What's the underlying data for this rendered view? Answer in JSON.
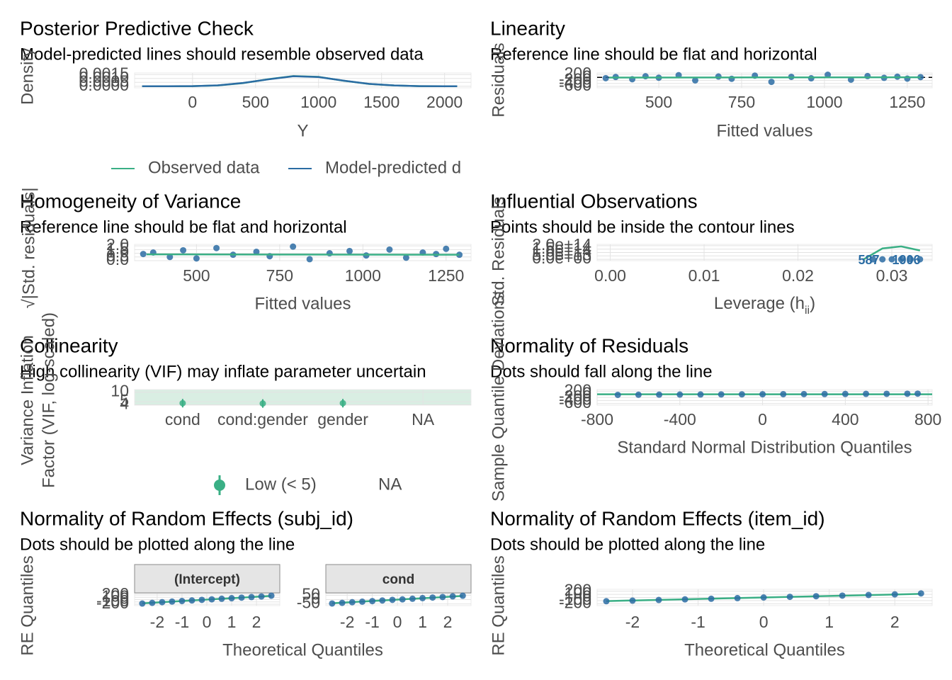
{
  "chart_data": [
    {
      "type": "density",
      "title": "Posterior Predictive Check",
      "subtitle": "Model-predicted lines should resemble observed data",
      "x_label": "Y",
      "y_label": "Density",
      "xlim": [
        -460,
        2210
      ],
      "ylim": [
        -0.0002,
        0.0017
      ],
      "xticks": [
        0,
        500,
        1000,
        1500,
        2000
      ],
      "yticks": [
        {
          "value": 0,
          "label": "0.0000"
        },
        {
          "value": 0.0005,
          "label": "0.0005"
        },
        {
          "value": 0.001,
          "label": "0.0010"
        },
        {
          "value": 0.0015,
          "label": "0.0015"
        }
      ],
      "grid": true,
      "legend": "bottom",
      "series": [
        {
          "name": "Observed data",
          "color": "#3aaf85",
          "mark": "line",
          "x": [
            -400,
            -200,
            0,
            200,
            400,
            600,
            800,
            1000,
            1200,
            1400,
            1600,
            1800,
            2000,
            2100
          ],
          "values": [
            0,
            0,
            1e-05,
            0.0001,
            0.0004,
            0.0009,
            0.0013,
            0.0012,
            0.0007,
            0.0003,
            0.0001,
            2e-05,
            0,
            0
          ]
        },
        {
          "name": "Model-predicted d",
          "color": "#2b6ca3",
          "mark": "line",
          "x": [
            -400,
            -200,
            0,
            200,
            400,
            600,
            800,
            1000,
            1200,
            1400,
            1600,
            1800,
            2000,
            2100
          ],
          "values": [
            0,
            0,
            2e-05,
            0.00012,
            0.00042,
            0.00088,
            0.00128,
            0.00118,
            0.00072,
            0.00031,
            0.0001,
            2e-05,
            0,
            0
          ]
        }
      ]
    },
    {
      "type": "scatter",
      "title": "Linearity",
      "subtitle": "Reference line should be flat and horizontal",
      "x_label": "Fitted values",
      "y_label": "Residuals",
      "xlim": [
        314,
        1325
      ],
      "ylim": [
        -700,
        300
      ],
      "xticks": [
        500,
        750,
        1000,
        1250
      ],
      "yticks": [
        -600,
        -400,
        -200,
        0,
        200
      ],
      "grid": true,
      "ref_line": 0,
      "series": [
        {
          "color": "#2b6ca3",
          "mark": "point",
          "x": [
            340,
            370,
            420,
            460,
            500,
            560,
            610,
            680,
            720,
            790,
            840,
            900,
            960,
            1010,
            1080,
            1130,
            1180,
            1220,
            1250,
            1290
          ],
          "values": [
            -50,
            30,
            -120,
            80,
            -20,
            150,
            -200,
            60,
            -90,
            120,
            -300,
            40,
            -60,
            180,
            -150,
            90,
            -30,
            50,
            -80,
            20
          ]
        },
        {
          "color": "#3aaf85",
          "mark": "line",
          "x": [
            350,
            800,
            1290
          ],
          "values": [
            -10,
            0,
            10
          ]
        }
      ]
    },
    {
      "type": "scatter",
      "title": "Homogeneity of Variance",
      "subtitle": "Reference line should be flat and horizontal",
      "x_label": "Fitted values",
      "y_label": "√|Std. residuals|",
      "xlim": [
        314,
        1325
      ],
      "ylim": [
        0,
        2.2
      ],
      "xticks": [
        500,
        750,
        1000,
        1250
      ],
      "yticks": [
        {
          "value": 0,
          "label": "0.0"
        },
        {
          "value": 0.5,
          "label": "0.5"
        },
        {
          "value": 1,
          "label": "1.0"
        },
        {
          "value": 1.5,
          "label": "1.5"
        },
        {
          "value": 2,
          "label": "2.0"
        }
      ],
      "grid": true,
      "series": [
        {
          "color": "#2b6ca3",
          "mark": "point",
          "x": [
            340,
            370,
            420,
            460,
            500,
            560,
            610,
            680,
            720,
            790,
            840,
            900,
            960,
            1010,
            1080,
            1130,
            1180,
            1220,
            1250,
            1290
          ],
          "values": [
            0.9,
            1.1,
            0.5,
            1.4,
            0.3,
            1.7,
            0.8,
            1.2,
            0.6,
            1.9,
            0.2,
            1.0,
            1.3,
            0.7,
            1.5,
            0.4,
            1.1,
            0.9,
            1.6,
            0.8
          ]
        },
        {
          "color": "#3aaf85",
          "mark": "line",
          "x": [
            350,
            800,
            1290
          ],
          "values": [
            0.85,
            0.82,
            0.8
          ]
        }
      ]
    },
    {
      "type": "scatter",
      "title": "Influential Observations",
      "subtitle": "Points should be inside the contour lines",
      "x_label": [
        "Leverage (h",
        "ii",
        ")"
      ],
      "y_label": "Std. Residuals",
      "xlim": [
        -0.0014,
        0.0343
      ],
      "ylim": [
        -20000000000000.0,
        220000000000000.0
      ],
      "xticks": [
        {
          "value": 0,
          "label": "0.00"
        },
        {
          "value": 0.01,
          "label": "0.01"
        },
        {
          "value": 0.02,
          "label": "0.02"
        },
        {
          "value": 0.03,
          "label": "0.03"
        }
      ],
      "yticks": [
        {
          "value": 0,
          "label": "0.0e+00"
        },
        {
          "value": 50000000000000.0,
          "label": "5.0e+13"
        },
        {
          "value": 100000000000000.0,
          "label": "1.0e+14"
        },
        {
          "value": 150000000000000.0,
          "label": "1.5e+14"
        },
        {
          "value": 200000000000000.0,
          "label": "2.0e+14"
        }
      ],
      "grid": true,
      "series": [
        {
          "color": "#3aaf85",
          "mark": "line",
          "x": [
            0.027,
            0.029,
            0.031,
            0.033
          ],
          "values": [
            0,
            160000000000000.0,
            190000000000000.0,
            130000000000000.0
          ]
        },
        {
          "color": "#2b6ca3",
          "mark": "point",
          "x": [
            0.028,
            0.029,
            0.03,
            0.031,
            0.032,
            0.033
          ],
          "values": [
            0,
            0,
            0,
            0,
            0,
            0
          ],
          "point_labels": [
            "587",
            null,
            null,
            null,
            "1906",
            null
          ]
        }
      ]
    },
    {
      "type": "dot",
      "title": "Collinearity",
      "subtitle": "High collinearity (VIF) may inflate parameter uncertain",
      "y_label": [
        "Variance Inflation",
        "Factor (VIF, log-scaled)"
      ],
      "categories": [
        "cond",
        "cond:gender",
        "gender",
        "NA"
      ],
      "log_y": true,
      "ylim": [
        3.9,
        12
      ],
      "yticks": [
        4,
        5,
        10
      ],
      "grid": true,
      "legend": "bottom",
      "series": [
        {
          "name": "Low (< 5)",
          "color": "#3aaf85",
          "mark": "point",
          "values": [
            4.5,
            4.4,
            4.5,
            null
          ]
        },
        {
          "name": "NA",
          "mark": "point",
          "values": [
            null,
            null,
            null,
            null
          ]
        }
      ]
    },
    {
      "type": "qq",
      "title": "Normality of Residuals",
      "subtitle": "Dots should fall along the line",
      "x_label": "Standard Normal Distribution Quantiles",
      "y_label": "Sample Quantile Deviations",
      "xlim": [
        -800,
        820
      ],
      "ylim": [
        -700,
        300
      ],
      "xticks": [
        -800,
        -400,
        0,
        400,
        800
      ],
      "yticks": [
        -600,
        -400,
        -200,
        0,
        200
      ],
      "grid": true,
      "series": [
        {
          "color": "#3aaf85",
          "mark": "line",
          "x": [
            -800,
            820
          ],
          "values": [
            0,
            0
          ]
        },
        {
          "color": "#2b6ca3",
          "mark": "point",
          "x": [
            -700,
            -600,
            -500,
            -400,
            -300,
            -200,
            -100,
            0,
            100,
            200,
            300,
            400,
            500,
            600,
            700,
            750
          ],
          "values": [
            -40,
            -30,
            -25,
            -20,
            -15,
            -10,
            -5,
            0,
            5,
            10,
            15,
            20,
            25,
            30,
            35,
            40
          ]
        }
      ]
    },
    {
      "type": "qq",
      "title": "Normality of Random Effects (subj_id)",
      "subtitle": "Dots should be plotted along the line",
      "x_label": "Theoretical Quantiles",
      "y_label": "RE Quantiles",
      "facets": [
        {
          "strip": "(Intercept)",
          "xlim": [
            -2.91,
            2.94
          ],
          "ylim": [
            -260,
            260
          ],
          "xticks": [
            -2,
            -1,
            0,
            1,
            2
          ],
          "yticks": [
            -200,
            -100,
            0,
            100,
            200
          ],
          "series": [
            {
              "color": "#3aaf85",
              "mark": "line",
              "x": [
                -2.6,
                2.6
              ],
              "values": [
                -160,
                160
              ]
            },
            {
              "color": "#2b6ca3",
              "mark": "point",
              "x": [
                -2.6,
                -2.2,
                -1.8,
                -1.4,
                -1.0,
                -0.6,
                -0.2,
                0.2,
                0.6,
                1.0,
                1.4,
                1.8,
                2.2,
                2.6
              ],
              "values": [
                -170,
                -140,
                -110,
                -85,
                -60,
                -35,
                -10,
                12,
                38,
                60,
                85,
                110,
                135,
                170
              ]
            }
          ]
        },
        {
          "strip": "cond",
          "xlim": [
            -2.85,
            2.93
          ],
          "ylim": [
            -70,
            70
          ],
          "xticks": [
            -2,
            -1,
            0,
            1,
            2
          ],
          "yticks": [
            -50,
            0,
            50
          ],
          "series": [
            {
              "color": "#3aaf85",
              "mark": "line",
              "x": [
                -2.6,
                2.6
              ],
              "values": [
                -42,
                42
              ]
            },
            {
              "color": "#2b6ca3",
              "mark": "point",
              "x": [
                -2.6,
                -2.2,
                -1.8,
                -1.4,
                -1.0,
                -0.6,
                -0.2,
                0.2,
                0.6,
                1.0,
                1.4,
                1.8,
                2.2,
                2.6
              ],
              "values": [
                -45,
                -38,
                -30,
                -24,
                -17,
                -10,
                -3,
                3,
                10,
                17,
                24,
                30,
                38,
                45
              ]
            }
          ]
        }
      ],
      "grid": true
    },
    {
      "type": "qq",
      "title": "Normality of Random Effects (item_id)",
      "subtitle": "Dots should be plotted along the line",
      "x_label": "Theoretical Quantiles",
      "y_label": "RE Quantiles",
      "xlim": [
        -2.54,
        2.57
      ],
      "ylim": [
        -260,
        260
      ],
      "xticks": [
        -2,
        -1,
        0,
        1,
        2
      ],
      "yticks": [
        -200,
        -100,
        0,
        100,
        200
      ],
      "grid": true,
      "series": [
        {
          "color": "#3aaf85",
          "mark": "line",
          "x": [
            -2.4,
            2.4
          ],
          "values": [
            -115,
            115
          ]
        },
        {
          "color": "#2b6ca3",
          "mark": "point",
          "x": [
            -2.4,
            -2.0,
            -1.6,
            -1.2,
            -0.8,
            -0.4,
            0,
            0.4,
            0.8,
            1.2,
            1.6,
            2.0,
            2.4
          ],
          "values": [
            -120,
            -100,
            -80,
            -60,
            -40,
            -20,
            0,
            20,
            40,
            60,
            80,
            100,
            130
          ]
        }
      ]
    }
  ]
}
